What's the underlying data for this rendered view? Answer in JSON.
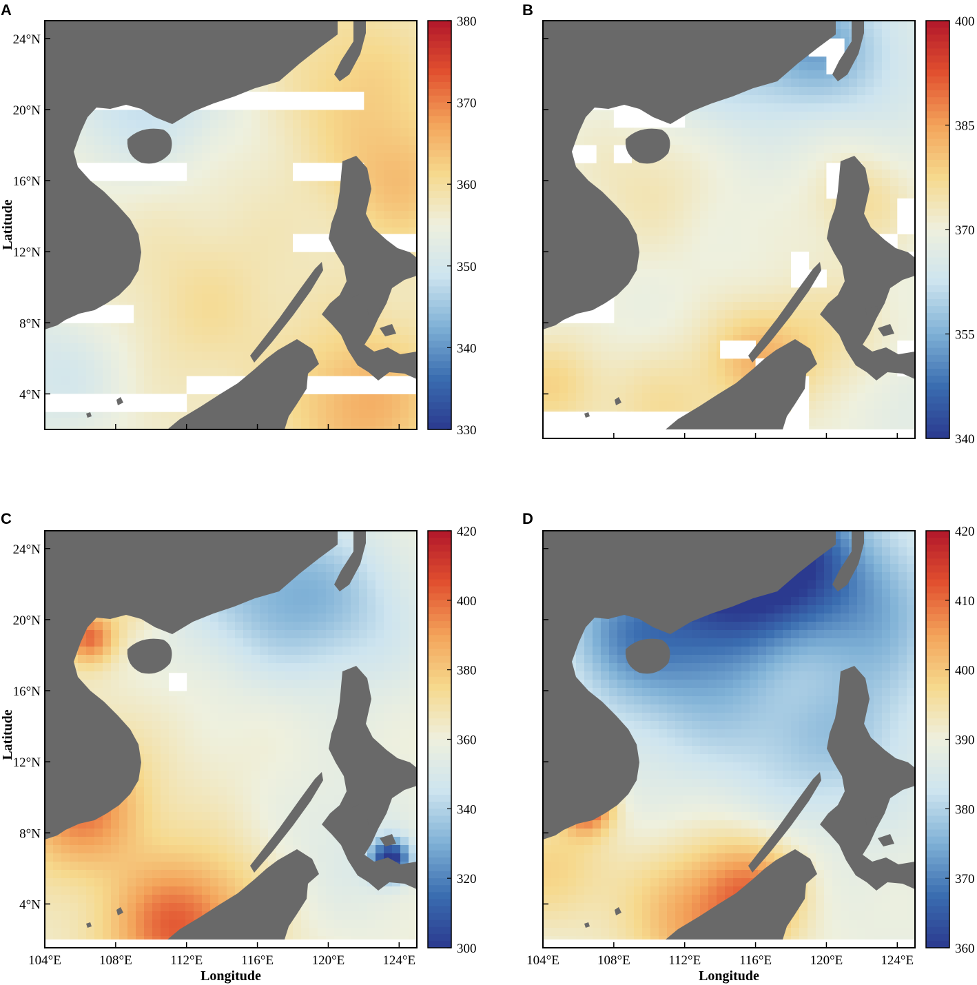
{
  "figure": {
    "land_color": "#696969",
    "nodata_color": "#ffffff",
    "colormap": [
      "#2b3a8f",
      "#3a6db0",
      "#7fb1d6",
      "#cde4ef",
      "#eef0de",
      "#f6d98d",
      "#f3a35a",
      "#e1502f",
      "#b2172b"
    ],
    "axes": {
      "x_label": "Longitude",
      "y_label": "Latitude",
      "x_ticks": [
        "104°E",
        "108°E",
        "112°E",
        "116°E",
        "120°E",
        "124°E"
      ],
      "x_tick_values": [
        104,
        108,
        112,
        116,
        120,
        124
      ],
      "y_ticks": [
        "24°N",
        "20°N",
        "16°N",
        "12°N",
        "8°N",
        "4°N"
      ],
      "y_tick_values": [
        24,
        20,
        16,
        12,
        8,
        4
      ],
      "lon_range": [
        104,
        125
      ],
      "lat_range": [
        2,
        25
      ]
    },
    "panels": [
      {
        "letter": "A",
        "colorbar": {
          "ticks": [
            "380",
            "370",
            "360",
            "350",
            "340",
            "330"
          ],
          "range": [
            330,
            380
          ]
        },
        "show_x_labels": false,
        "show_y_labels": true,
        "map": {
          "base_value": 357,
          "nodata_cells": [
            [
              104,
              20
            ],
            [
              105,
              20
            ],
            [
              106,
              20
            ],
            [
              107,
              20
            ],
            [
              108,
              20
            ],
            [
              109,
              20
            ],
            [
              110,
              20
            ],
            [
              111,
              20
            ],
            [
              112,
              20
            ],
            [
              113,
              20
            ],
            [
              114,
              20
            ],
            [
              115,
              20
            ],
            [
              116,
              20
            ],
            [
              117,
              20
            ],
            [
              118,
              20
            ],
            [
              119,
              20
            ],
            [
              120,
              20
            ],
            [
              121,
              20
            ],
            [
              104,
              16
            ],
            [
              105,
              16
            ],
            [
              106,
              16
            ],
            [
              107,
              16
            ],
            [
              108,
              16
            ],
            [
              109,
              16
            ],
            [
              110,
              16
            ],
            [
              111,
              16
            ],
            [
              104,
              8
            ],
            [
              105,
              8
            ],
            [
              106,
              8
            ],
            [
              107,
              8
            ],
            [
              108,
              8
            ],
            [
              118,
              16
            ],
            [
              119,
              16
            ],
            [
              120,
              16
            ],
            [
              121,
              16
            ],
            [
              118,
              12
            ],
            [
              119,
              12
            ],
            [
              120,
              12
            ],
            [
              121,
              12
            ],
            [
              122,
              12
            ],
            [
              123,
              12
            ],
            [
              124,
              12
            ],
            [
              112,
              4
            ],
            [
              113,
              4
            ],
            [
              114,
              4
            ],
            [
              115,
              4
            ],
            [
              116,
              4
            ],
            [
              117,
              4
            ],
            [
              118,
              4
            ],
            [
              119,
              4
            ],
            [
              120,
              4
            ],
            [
              121,
              4
            ],
            [
              122,
              4
            ],
            [
              123,
              4
            ],
            [
              124,
              4
            ],
            [
              104,
              3
            ],
            [
              105,
              3
            ],
            [
              106,
              3
            ],
            [
              107,
              3
            ],
            [
              108,
              3
            ],
            [
              109,
              3
            ],
            [
              110,
              3
            ],
            [
              111,
              3
            ]
          ],
          "blobs": [
            {
              "lon": 121.5,
              "lat": 21.5,
              "value": 362,
              "radius": 3
            },
            {
              "lon": 124,
              "lat": 16,
              "value": 364,
              "radius": 2.5
            },
            {
              "lon": 122,
              "lat": 3.5,
              "value": 366,
              "radius": 3
            },
            {
              "lon": 108,
              "lat": 20,
              "value": 351,
              "radius": 3
            },
            {
              "lon": 104.5,
              "lat": 5,
              "value": 350,
              "radius": 3
            },
            {
              "lon": 112,
              "lat": 21,
              "value": 352,
              "radius": 3
            },
            {
              "lon": 113,
              "lat": 9,
              "value": 360,
              "radius": 3
            }
          ]
        }
      },
      {
        "letter": "B",
        "colorbar": {
          "ticks": [
            "400",
            "385",
            "370",
            "355",
            "340"
          ],
          "range": [
            340,
            400
          ]
        },
        "show_x_labels": false,
        "show_y_labels": false,
        "map": {
          "base_value": 369,
          "nodata_cells": [
            [
              119,
              25
            ],
            [
              119,
              24
            ],
            [
              119,
              23
            ],
            [
              120,
              23
            ],
            [
              120,
              22
            ],
            [
              104,
              21
            ],
            [
              105,
              21
            ],
            [
              106,
              21
            ],
            [
              107,
              21
            ],
            [
              108,
              21
            ],
            [
              109,
              21
            ],
            [
              110,
              21
            ],
            [
              104,
              20
            ],
            [
              105,
              20
            ],
            [
              106,
              20
            ],
            [
              107,
              20
            ],
            [
              108,
              20
            ],
            [
              109,
              20
            ],
            [
              108,
              19
            ],
            [
              109,
              19
            ],
            [
              110,
              19
            ],
            [
              111,
              19
            ],
            [
              104,
              17
            ],
            [
              105,
              17
            ],
            [
              106,
              17
            ],
            [
              108,
              17
            ],
            [
              120,
              16
            ],
            [
              121,
              16
            ],
            [
              120,
              15
            ],
            [
              121,
              15
            ],
            [
              124,
              14
            ],
            [
              124,
              13
            ],
            [
              123,
              12
            ],
            [
              124,
              11
            ],
            [
              118,
              11
            ],
            [
              118,
              10
            ],
            [
              119,
              10
            ],
            [
              104,
              9
            ],
            [
              105,
              9
            ],
            [
              106,
              9
            ],
            [
              107,
              9
            ],
            [
              104,
              8
            ],
            [
              105,
              8
            ],
            [
              106,
              8
            ],
            [
              107,
              8
            ],
            [
              114,
              6
            ],
            [
              115,
              6
            ],
            [
              116,
              5
            ],
            [
              117,
              5
            ],
            [
              117,
              4
            ],
            [
              118,
              4
            ],
            [
              118,
              3
            ],
            [
              124,
              6
            ],
            [
              124,
              5
            ],
            [
              104,
              2
            ],
            [
              105,
              2
            ],
            [
              106,
              2
            ],
            [
              107,
              2
            ],
            [
              108,
              2
            ],
            [
              109,
              2
            ],
            [
              110,
              2
            ],
            [
              111,
              2
            ],
            [
              112,
              2
            ],
            [
              113,
              2
            ],
            [
              114,
              2
            ],
            [
              115,
              2
            ],
            [
              116,
              2
            ],
            [
              117,
              2
            ],
            [
              118,
              2
            ]
          ],
          "blobs": [
            {
              "lon": 119,
              "lat": 24,
              "value": 356,
              "radius": 2.5
            },
            {
              "lon": 114,
              "lat": 22,
              "value": 362,
              "radius": 3
            },
            {
              "lon": 123,
              "lat": 22,
              "value": 364,
              "radius": 3
            },
            {
              "lon": 110,
              "lat": 16,
              "value": 374,
              "radius": 3
            },
            {
              "lon": 122,
              "lat": 15,
              "value": 376,
              "radius": 2
            },
            {
              "lon": 120,
              "lat": 7,
              "value": 375,
              "radius": 3
            },
            {
              "lon": 104.5,
              "lat": 4.5,
              "value": 378,
              "radius": 2
            },
            {
              "lon": 116,
              "lat": 6,
              "value": 380,
              "radius": 2
            },
            {
              "lon": 111,
              "lat": 3,
              "value": 376,
              "radius": 2.5
            },
            {
              "lon": 124,
              "lat": 4,
              "value": 366,
              "radius": 2
            }
          ]
        }
      },
      {
        "letter": "C",
        "colorbar": {
          "ticks": [
            "420",
            "400",
            "380",
            "360",
            "340",
            "320",
            "300"
          ],
          "range": [
            300,
            420
          ]
        },
        "show_x_labels": true,
        "show_y_labels": true,
        "map": {
          "base_value": 364,
          "nodata_cells": [
            [
              111,
              16
            ]
          ],
          "blobs": [
            {
              "lon": 115,
              "lat": 22.5,
              "value": 342,
              "radius": 4
            },
            {
              "lon": 119,
              "lat": 21,
              "value": 350,
              "radius": 3
            },
            {
              "lon": 123,
              "lat": 20,
              "value": 352,
              "radius": 4
            },
            {
              "lon": 121,
              "lat": 7,
              "value": 352,
              "radius": 4
            },
            {
              "lon": 123.5,
              "lat": 6.5,
              "value": 305,
              "radius": 0.8
            },
            {
              "lon": 106,
              "lat": 9.5,
              "value": 398,
              "radius": 2.5
            },
            {
              "lon": 111,
              "lat": 2.5,
              "value": 395,
              "radius": 2.5
            },
            {
              "lon": 106.5,
              "lat": 19,
              "value": 400,
              "radius": 1
            },
            {
              "lon": 109,
              "lat": 21,
              "value": 375,
              "radius": 1.5
            },
            {
              "lon": 114,
              "lat": 4,
              "value": 378,
              "radius": 3
            }
          ]
        }
      },
      {
        "letter": "D",
        "colorbar": {
          "ticks": [
            "420",
            "410",
            "400",
            "390",
            "380",
            "370",
            "360"
          ],
          "range": [
            360,
            420
          ]
        },
        "show_x_labels": true,
        "show_y_labels": false,
        "map": {
          "base_value": 389,
          "nodata_cells": [],
          "blobs": [
            {
              "lon": 117,
              "lat": 24,
              "value": 362,
              "radius": 3
            },
            {
              "lon": 113,
              "lat": 21.5,
              "value": 372,
              "radius": 4
            },
            {
              "lon": 111,
              "lat": 17,
              "value": 382,
              "radius": 4
            },
            {
              "lon": 120,
              "lat": 14,
              "value": 378,
              "radius": 4
            },
            {
              "lon": 123,
              "lat": 21,
              "value": 378,
              "radius": 3
            },
            {
              "lon": 108,
              "lat": 19,
              "value": 382,
              "radius": 2
            },
            {
              "lon": 113,
              "lat": 3,
              "value": 405,
              "radius": 3
            },
            {
              "lon": 116,
              "lat": 5,
              "value": 402,
              "radius": 2
            },
            {
              "lon": 106.5,
              "lat": 9.5,
              "value": 412,
              "radius": 1
            },
            {
              "lon": 113.5,
              "lat": 22.5,
              "value": 420,
              "radius": 0.6
            },
            {
              "lon": 104.5,
              "lat": 6,
              "value": 398,
              "radius": 2.5
            },
            {
              "lon": 118,
              "lat": 17,
              "value": 394,
              "radius": 2
            }
          ]
        }
      }
    ]
  }
}
